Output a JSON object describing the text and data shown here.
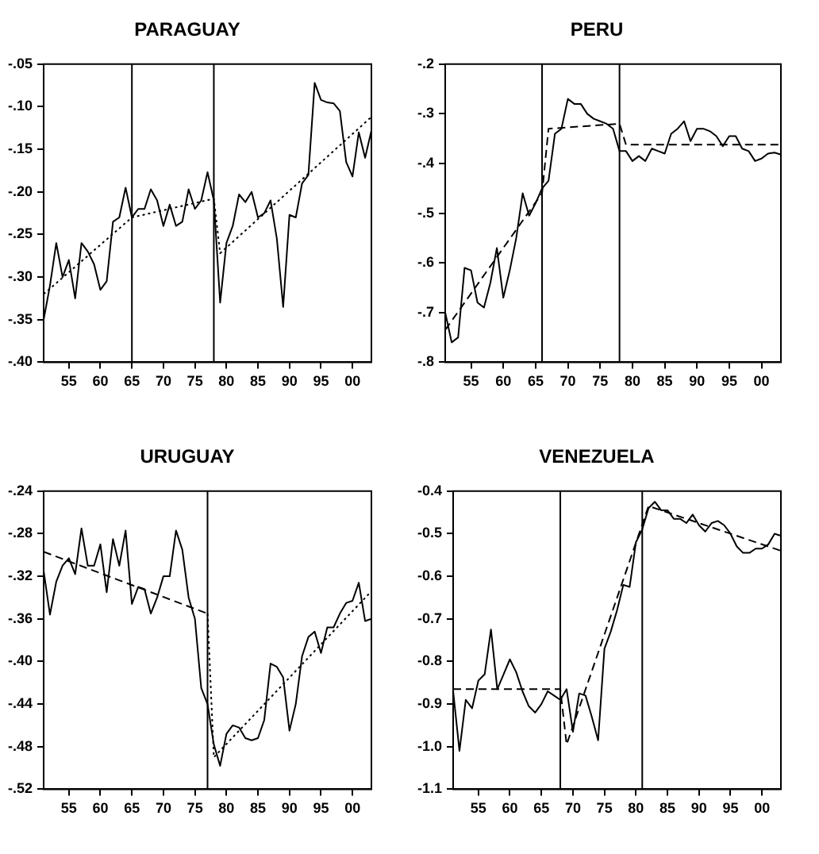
{
  "chart_data": [
    {
      "type": "line",
      "title": "PARAGUAY",
      "x": [
        1951,
        1952,
        1953,
        1954,
        1955,
        1956,
        1957,
        1958,
        1959,
        1960,
        1961,
        1962,
        1963,
        1964,
        1965,
        1966,
        1967,
        1968,
        1969,
        1970,
        1971,
        1972,
        1973,
        1974,
        1975,
        1976,
        1977,
        1978,
        1979,
        1980,
        1981,
        1982,
        1983,
        1984,
        1985,
        1986,
        1987,
        1988,
        1989,
        1990,
        1991,
        1992,
        1993,
        1994,
        1995,
        1996,
        1997,
        1998,
        1999,
        2000,
        2001,
        2002,
        2003
      ],
      "series": [
        {
          "color": "#000000",
          "line_style": "solid",
          "values": [
            -0.35,
            -0.31,
            -0.26,
            -0.3,
            -0.28,
            -0.325,
            -0.26,
            -0.27,
            -0.285,
            -0.315,
            -0.305,
            -0.235,
            -0.23,
            -0.195,
            -0.23,
            -0.22,
            -0.22,
            -0.197,
            -0.21,
            -0.24,
            -0.215,
            -0.24,
            -0.235,
            -0.197,
            -0.22,
            -0.21,
            -0.177,
            -0.21,
            -0.33,
            -0.26,
            -0.24,
            -0.203,
            -0.212,
            -0.2,
            -0.23,
            -0.225,
            -0.21,
            -0.255,
            -0.335,
            -0.227,
            -0.23,
            -0.19,
            -0.18,
            -0.072,
            -0.092,
            -0.095,
            -0.096,
            -0.105,
            -0.165,
            -0.182,
            -0.13,
            -0.16,
            -0.128
          ]
        },
        {
          "type": "line",
          "color": "#000000",
          "line_style": "dotted",
          "x": [
            1951,
            1965,
            1978,
            1979,
            2003
          ],
          "values": [
            -0.32,
            -0.23,
            -0.208,
            -0.272,
            -0.112
          ]
        }
      ],
      "xlim": [
        1951,
        2003
      ],
      "xticks": [
        {
          "value": 1955,
          "label": "55"
        },
        {
          "value": 1960,
          "label": "60"
        },
        {
          "value": 1965,
          "label": "65"
        },
        {
          "value": 1970,
          "label": "70"
        },
        {
          "value": 1975,
          "label": "75"
        },
        {
          "value": 1980,
          "label": "80"
        },
        {
          "value": 1985,
          "label": "85"
        },
        {
          "value": 1990,
          "label": "90"
        },
        {
          "value": 1995,
          "label": "95"
        },
        {
          "value": 2000,
          "label": "00"
        }
      ],
      "ylim": [
        -0.4,
        -0.05
      ],
      "yticks": [
        {
          "value": -0.4,
          "label": "-.40"
        },
        {
          "value": -0.35,
          "label": "-.35"
        },
        {
          "value": -0.3,
          "label": "-.30"
        },
        {
          "value": -0.25,
          "label": "-.25"
        },
        {
          "value": -0.2,
          "label": "-.20"
        },
        {
          "value": -0.15,
          "label": "-.15"
        },
        {
          "value": -0.1,
          "label": "-.10"
        },
        {
          "value": -0.05,
          "label": "-.05"
        }
      ],
      "ref_lines": [
        {
          "axis": "x",
          "value": 1965,
          "color": "#000000"
        },
        {
          "axis": "x",
          "value": 1978,
          "color": "#000000"
        }
      ],
      "grid": false,
      "legend": false,
      "marker": "none"
    },
    {
      "type": "line",
      "title": "PERU",
      "x": [
        1951,
        1952,
        1953,
        1954,
        1955,
        1956,
        1957,
        1958,
        1959,
        1960,
        1961,
        1962,
        1963,
        1964,
        1965,
        1966,
        1967,
        1968,
        1969,
        1970,
        1971,
        1972,
        1973,
        1974,
        1975,
        1976,
        1977,
        1978,
        1979,
        1980,
        1981,
        1982,
        1983,
        1984,
        1985,
        1986,
        1987,
        1988,
        1989,
        1990,
        1991,
        1992,
        1993,
        1994,
        1995,
        1996,
        1997,
        1998,
        1999,
        2000,
        2001,
        2002,
        2003
      ],
      "series": [
        {
          "color": "#000000",
          "line_style": "solid",
          "values": [
            -0.7,
            -0.76,
            -0.75,
            -0.61,
            -0.615,
            -0.68,
            -0.69,
            -0.64,
            -0.57,
            -0.67,
            -0.615,
            -0.55,
            -0.46,
            -0.505,
            -0.48,
            -0.45,
            -0.435,
            -0.34,
            -0.33,
            -0.27,
            -0.28,
            -0.28,
            -0.3,
            -0.31,
            -0.315,
            -0.32,
            -0.33,
            -0.375,
            -0.375,
            -0.395,
            -0.385,
            -0.395,
            -0.37,
            -0.375,
            -0.38,
            -0.34,
            -0.33,
            -0.315,
            -0.355,
            -0.33,
            -0.33,
            -0.335,
            -0.345,
            -0.365,
            -0.345,
            -0.345,
            -0.37,
            -0.375,
            -0.395,
            -0.39,
            -0.38,
            -0.378,
            -0.382
          ]
        },
        {
          "type": "line",
          "color": "#000000",
          "line_style": "dashed",
          "x": [
            1951,
            1966,
            1967,
            1978,
            1979,
            2003
          ],
          "values": [
            -0.735,
            -0.46,
            -0.33,
            -0.32,
            -0.362,
            -0.362
          ]
        }
      ],
      "xlim": [
        1951,
        2003
      ],
      "xticks": [
        {
          "value": 1955,
          "label": "55"
        },
        {
          "value": 1960,
          "label": "60"
        },
        {
          "value": 1965,
          "label": "65"
        },
        {
          "value": 1970,
          "label": "70"
        },
        {
          "value": 1975,
          "label": "75"
        },
        {
          "value": 1980,
          "label": "80"
        },
        {
          "value": 1985,
          "label": "85"
        },
        {
          "value": 1990,
          "label": "90"
        },
        {
          "value": 1995,
          "label": "95"
        },
        {
          "value": 2000,
          "label": "00"
        }
      ],
      "ylim": [
        -0.8,
        -0.2
      ],
      "yticks": [
        {
          "value": -0.8,
          "label": "-.8"
        },
        {
          "value": -0.7,
          "label": "-.7"
        },
        {
          "value": -0.6,
          "label": "-.6"
        },
        {
          "value": -0.5,
          "label": "-.5"
        },
        {
          "value": -0.4,
          "label": "-.4"
        },
        {
          "value": -0.3,
          "label": "-.3"
        },
        {
          "value": -0.2,
          "label": "-.2"
        }
      ],
      "ref_lines": [
        {
          "axis": "x",
          "value": 1966,
          "color": "#000000"
        },
        {
          "axis": "x",
          "value": 1978,
          "color": "#000000"
        }
      ],
      "grid": false,
      "legend": false,
      "marker": "none"
    },
    {
      "type": "line",
      "title": "URUGUAY",
      "x": [
        1951,
        1952,
        1953,
        1954,
        1955,
        1956,
        1957,
        1958,
        1959,
        1960,
        1961,
        1962,
        1963,
        1964,
        1965,
        1966,
        1967,
        1968,
        1969,
        1970,
        1971,
        1972,
        1973,
        1974,
        1975,
        1976,
        1977,
        1978,
        1979,
        1980,
        1981,
        1982,
        1983,
        1984,
        1985,
        1986,
        1987,
        1988,
        1989,
        1990,
        1991,
        1992,
        1993,
        1994,
        1995,
        1996,
        1997,
        1998,
        1999,
        2000,
        2001,
        2002,
        2003
      ],
      "series": [
        {
          "color": "#000000",
          "line_style": "solid",
          "values": [
            -0.315,
            -0.356,
            -0.325,
            -0.31,
            -0.303,
            -0.318,
            -0.275,
            -0.31,
            -0.31,
            -0.29,
            -0.335,
            -0.285,
            -0.31,
            -0.277,
            -0.346,
            -0.33,
            -0.332,
            -0.355,
            -0.34,
            -0.32,
            -0.32,
            -0.277,
            -0.295,
            -0.34,
            -0.36,
            -0.425,
            -0.44,
            -0.478,
            -0.498,
            -0.468,
            -0.46,
            -0.462,
            -0.472,
            -0.474,
            -0.472,
            -0.455,
            -0.402,
            -0.405,
            -0.415,
            -0.465,
            -0.44,
            -0.395,
            -0.377,
            -0.372,
            -0.392,
            -0.368,
            -0.368,
            -0.355,
            -0.345,
            -0.343,
            -0.326,
            -0.362,
            -0.36
          ]
        },
        {
          "type": "line",
          "color": "#000000",
          "line_style": "dashed",
          "x": [
            1951,
            1977
          ],
          "values": [
            -0.297,
            -0.355
          ]
        },
        {
          "type": "line",
          "color": "#000000",
          "line_style": "dotted",
          "x": [
            1977,
            1978,
            2003
          ],
          "values": [
            -0.355,
            -0.49,
            -0.334
          ]
        }
      ],
      "xlim": [
        1951,
        2003
      ],
      "xticks": [
        {
          "value": 1955,
          "label": "55"
        },
        {
          "value": 1960,
          "label": "60"
        },
        {
          "value": 1965,
          "label": "65"
        },
        {
          "value": 1970,
          "label": "70"
        },
        {
          "value": 1975,
          "label": "75"
        },
        {
          "value": 1980,
          "label": "80"
        },
        {
          "value": 1985,
          "label": "85"
        },
        {
          "value": 1990,
          "label": "90"
        },
        {
          "value": 1995,
          "label": "95"
        },
        {
          "value": 2000,
          "label": "00"
        }
      ],
      "ylim": [
        -0.52,
        -0.24
      ],
      "yticks": [
        {
          "value": -0.52,
          "label": "-.52"
        },
        {
          "value": -0.48,
          "label": "-.48"
        },
        {
          "value": -0.44,
          "label": "-.44"
        },
        {
          "value": -0.4,
          "label": "-.40"
        },
        {
          "value": -0.36,
          "label": "-.36"
        },
        {
          "value": -0.32,
          "label": "-.32"
        },
        {
          "value": -0.28,
          "label": "-.28"
        },
        {
          "value": -0.24,
          "label": "-.24"
        }
      ],
      "ref_lines": [
        {
          "axis": "x",
          "value": 1977,
          "color": "#000000"
        }
      ],
      "grid": false,
      "legend": false,
      "marker": "none"
    },
    {
      "type": "line",
      "title": "VENEZUELA",
      "x": [
        1951,
        1952,
        1953,
        1954,
        1955,
        1956,
        1957,
        1958,
        1959,
        1960,
        1961,
        1962,
        1963,
        1964,
        1965,
        1966,
        1967,
        1968,
        1969,
        1970,
        1971,
        1972,
        1973,
        1974,
        1975,
        1976,
        1977,
        1978,
        1979,
        1980,
        1981,
        1982,
        1983,
        1984,
        1985,
        1986,
        1987,
        1988,
        1989,
        1990,
        1991,
        1992,
        1993,
        1994,
        1995,
        1996,
        1997,
        1998,
        1999,
        2000,
        2001,
        2002,
        2003
      ],
      "series": [
        {
          "color": "#000000",
          "line_style": "solid",
          "values": [
            -0.87,
            -1.01,
            -0.89,
            -0.91,
            -0.845,
            -0.83,
            -0.725,
            -0.865,
            -0.83,
            -0.795,
            -0.825,
            -0.87,
            -0.905,
            -0.92,
            -0.9,
            -0.87,
            -0.88,
            -0.89,
            -0.865,
            -0.965,
            -0.875,
            -0.88,
            -0.93,
            -0.985,
            -0.77,
            -0.73,
            -0.68,
            -0.62,
            -0.625,
            -0.52,
            -0.49,
            -0.44,
            -0.425,
            -0.445,
            -0.445,
            -0.465,
            -0.465,
            -0.475,
            -0.455,
            -0.48,
            -0.495,
            -0.475,
            -0.47,
            -0.48,
            -0.5,
            -0.53,
            -0.545,
            -0.545,
            -0.535,
            -0.535,
            -0.525,
            -0.5,
            -0.505
          ]
        },
        {
          "type": "line",
          "color": "#000000",
          "line_style": "dashed",
          "x": [
            1951,
            1968,
            1969,
            1982,
            2003
          ],
          "values": [
            -0.865,
            -0.865,
            -0.995,
            -0.435,
            -0.54
          ]
        }
      ],
      "xlim": [
        1951,
        2003
      ],
      "xticks": [
        {
          "value": 1955,
          "label": "55"
        },
        {
          "value": 1960,
          "label": "60"
        },
        {
          "value": 1965,
          "label": "65"
        },
        {
          "value": 1970,
          "label": "70"
        },
        {
          "value": 1975,
          "label": "75"
        },
        {
          "value": 1980,
          "label": "80"
        },
        {
          "value": 1985,
          "label": "85"
        },
        {
          "value": 1990,
          "label": "90"
        },
        {
          "value": 1995,
          "label": "95"
        },
        {
          "value": 2000,
          "label": "00"
        }
      ],
      "ylim": [
        -1.1,
        -0.4
      ],
      "yticks": [
        {
          "value": -1.1,
          "label": "-1.1"
        },
        {
          "value": -1.0,
          "label": "-1.0"
        },
        {
          "value": -0.9,
          "label": "-0.9"
        },
        {
          "value": -0.8,
          "label": "-0.8"
        },
        {
          "value": -0.7,
          "label": "-0.7"
        },
        {
          "value": -0.6,
          "label": "-0.6"
        },
        {
          "value": -0.5,
          "label": "-0.5"
        },
        {
          "value": -0.4,
          "label": "-0.4"
        }
      ],
      "ref_lines": [
        {
          "axis": "x",
          "value": 1968,
          "color": "#000000"
        },
        {
          "axis": "x",
          "value": 1981,
          "color": "#000000"
        }
      ],
      "grid": false,
      "legend": false,
      "marker": "none"
    }
  ]
}
